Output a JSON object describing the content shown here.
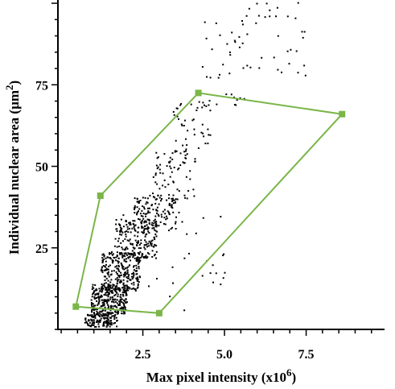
{
  "chart_data": {
    "type": "scatter",
    "xlabel": "Max pixel intensity (x10",
    "xlabel_sup": "6",
    "xlabel_close": ")",
    "ylabel": "Individual nuclear area (µm",
    "ylabel_sup": "2",
    "ylabel_close": ")",
    "xlim": [
      -0.1,
      9.9
    ],
    "ylim": [
      0,
      101
    ],
    "x_ticks": [
      2.5,
      5.0,
      7.5
    ],
    "x_tick_labels": [
      "2.5",
      "5.0",
      "7.5"
    ],
    "y_ticks": [
      25,
      50,
      75
    ],
    "y_tick_labels": [
      "25",
      "50",
      "75"
    ],
    "grid": false,
    "point_color": "#000000",
    "gate_color": "#7ab648",
    "gate_polygon": {
      "x": [
        1.2,
        4.2,
        8.6,
        3.0,
        0.45
      ],
      "y": [
        41,
        72.5,
        66,
        5,
        7
      ]
    },
    "density_regions": [
      {
        "x": [
          0.7,
          1.7
        ],
        "y": [
          1,
          5
        ],
        "count": 140
      },
      {
        "x": [
          0.9,
          2.0
        ],
        "y": [
          5,
          14
        ],
        "count": 280
      },
      {
        "x": [
          1.2,
          2.4
        ],
        "y": [
          12,
          24
        ],
        "count": 260
      },
      {
        "x": [
          1.6,
          2.9
        ],
        "y": [
          22,
          34
        ],
        "count": 200
      },
      {
        "x": [
          2.2,
          3.5
        ],
        "y": [
          30,
          42
        ],
        "count": 130
      },
      {
        "x": [
          2.8,
          4.1
        ],
        "y": [
          40,
          55
        ],
        "count": 70
      },
      {
        "x": [
          3.4,
          4.6
        ],
        "y": [
          55,
          70
        ],
        "count": 40
      },
      {
        "x": [
          4.2,
          5.6
        ],
        "y": [
          68,
          95
        ],
        "count": 35
      },
      {
        "x": [
          5.5,
          7.5
        ],
        "y": [
          78,
          101
        ],
        "count": 35
      },
      {
        "x": [
          1.8,
          5.0
        ],
        "y": [
          6,
          40
        ],
        "count": 40
      }
    ]
  }
}
